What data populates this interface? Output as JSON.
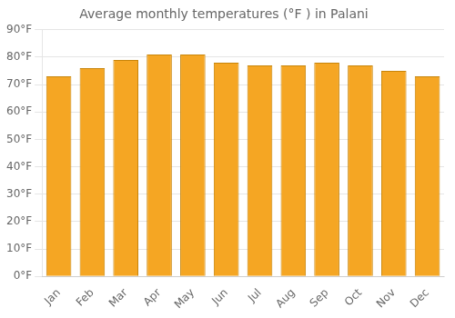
{
  "chart_data": {
    "type": "bar",
    "title": "Average monthly temperatures (°F ) in Palani",
    "categories": [
      "Jan",
      "Feb",
      "Mar",
      "Apr",
      "May",
      "Jun",
      "Jul",
      "Aug",
      "Sep",
      "Oct",
      "Nov",
      "Dec"
    ],
    "values": [
      73,
      76,
      79,
      81,
      81,
      78,
      77,
      77,
      78,
      77,
      75,
      73
    ],
    "color": "#F5A623",
    "ylim": [
      0,
      90
    ],
    "yticks": [
      {
        "value": 0,
        "label": "0°F"
      },
      {
        "value": 10,
        "label": "10°F"
      },
      {
        "value": 20,
        "label": "20°F"
      },
      {
        "value": 30,
        "label": "30°F"
      },
      {
        "value": 40,
        "label": "40°F"
      },
      {
        "value": 50,
        "label": "50°F"
      },
      {
        "value": 60,
        "label": "60°F"
      },
      {
        "value": 70,
        "label": "70°F"
      },
      {
        "value": 80,
        "label": "80°F"
      },
      {
        "value": 90,
        "label": "90°F"
      }
    ],
    "grid": true
  }
}
